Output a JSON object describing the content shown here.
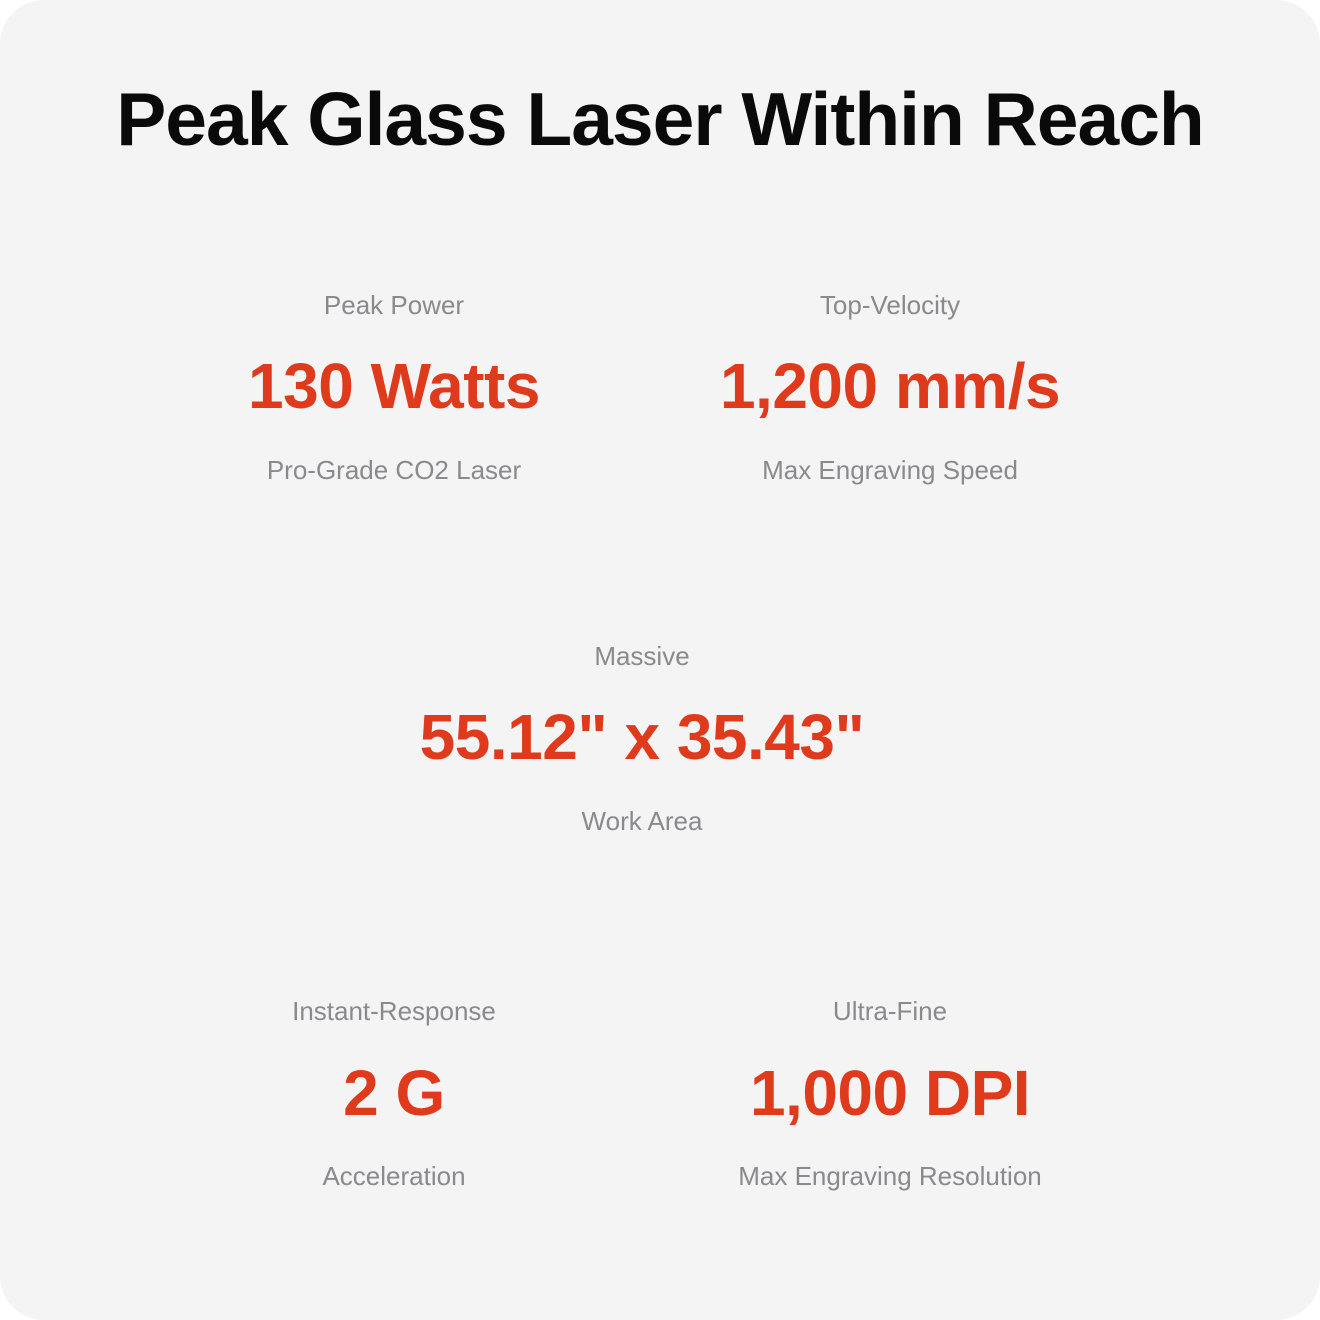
{
  "page": {
    "title": "Peak Glass Laser Within Reach"
  },
  "colors": {
    "accent_red": "#E03A1C",
    "label_gray": "#8A8A8E",
    "card_background": "#F4F4F5",
    "title_black": "#0A0A0A",
    "outer_background": "#FFFFFF"
  },
  "stats": [
    {
      "id": "peak-power",
      "label": "Peak Power",
      "value": "130 Watts",
      "sublabel": "Pro-Grade CO2 Laser"
    },
    {
      "id": "top-velocity",
      "label": "Top-Velocity",
      "value": "1,200 mm/s",
      "sublabel": "Max Engraving Speed"
    },
    {
      "id": "work-area",
      "label": "Massive",
      "value": "55.12\" x 35.43\"",
      "sublabel": "Work Area"
    },
    {
      "id": "acceleration",
      "label": "Instant-Response",
      "value": "2 G",
      "sublabel": "Acceleration"
    },
    {
      "id": "resolution",
      "label": "Ultra-Fine",
      "value": "1,000 DPI",
      "sublabel": "Max Engraving Resolution"
    }
  ]
}
